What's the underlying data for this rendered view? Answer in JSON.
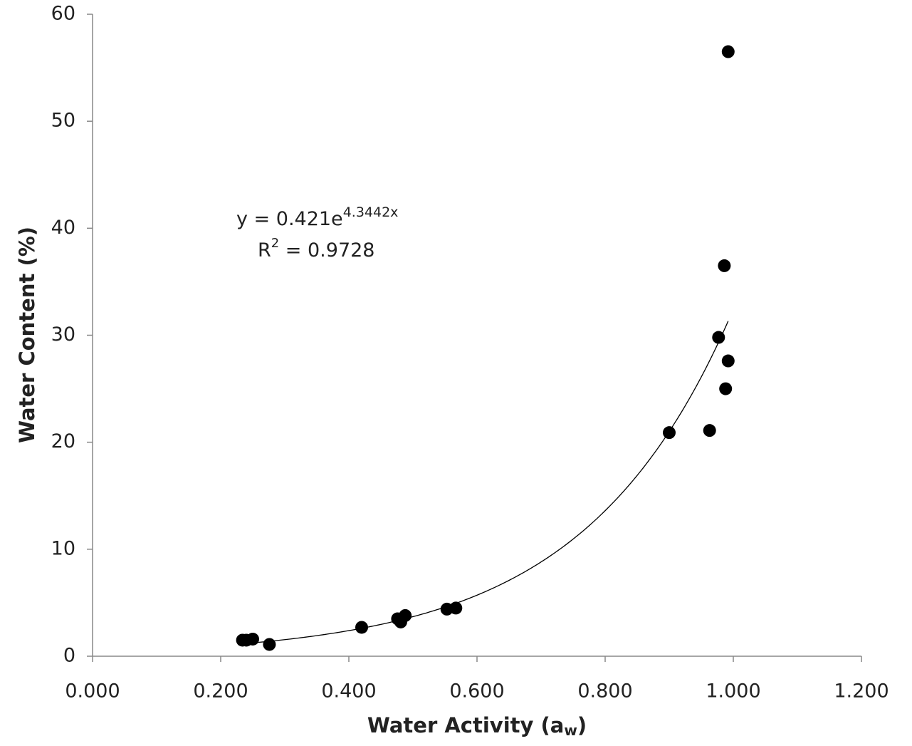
{
  "chart_data": {
    "type": "scatter",
    "x_label_parts": [
      "Water Activity (a",
      "w",
      ")"
    ],
    "y_label": "Water Content (%)",
    "x": [
      0.234,
      0.24,
      0.25,
      0.276,
      0.42,
      0.476,
      0.481,
      0.488,
      0.553,
      0.567,
      0.9,
      0.963,
      0.977,
      0.986,
      0.988,
      0.992,
      0.992
    ],
    "series": [
      {
        "color": "#000000",
        "values": [
          1.5,
          1.5,
          1.6,
          1.1,
          2.7,
          3.5,
          3.2,
          3.8,
          4.4,
          4.5,
          20.9,
          21.1,
          29.8,
          36.5,
          25.0,
          27.6,
          56.5
        ]
      }
    ],
    "trendline": {
      "type": "exponential",
      "a": 0.421,
      "b": 4.3442,
      "color": "#000000"
    },
    "annotation": {
      "equation": "y = 0.421e",
      "exponent": "4.3442x",
      "r_squared_base": "R",
      "r_squared_power": "2",
      "r_squared_value": " = 0.9728"
    },
    "xlim": [
      0,
      1.2
    ],
    "ylim": [
      0,
      60
    ],
    "xticks": [
      {
        "value": 0,
        "label": "0.000"
      },
      {
        "value": 0.2,
        "label": "0.200"
      },
      {
        "value": 0.4,
        "label": "0.400"
      },
      {
        "value": 0.6,
        "label": "0.600"
      },
      {
        "value": 0.8,
        "label": "0.800"
      },
      {
        "value": 1.0,
        "label": "1.000"
      },
      {
        "value": 1.2,
        "label": "1.200"
      }
    ],
    "yticks": [
      0,
      10,
      20,
      30,
      40,
      50,
      60
    ],
    "grid": false
  }
}
